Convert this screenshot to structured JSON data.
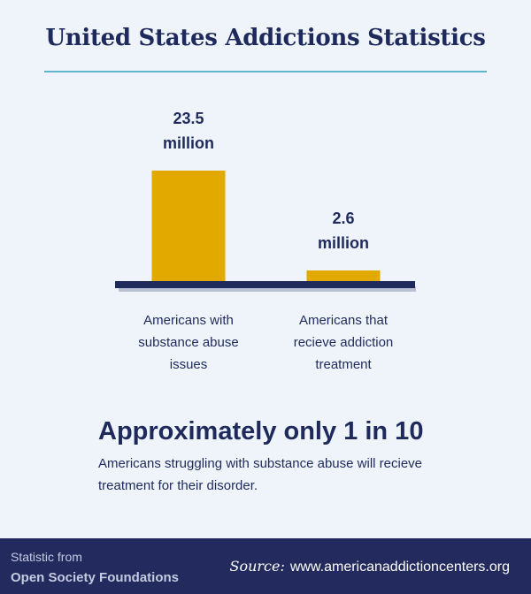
{
  "title": "United States Addictions Statistics",
  "colors": {
    "background": "#eef4fa",
    "navy": "#1f2a5c",
    "bar": "#e2aa00",
    "rule": "#5fb3cc",
    "footer": "#232a5e"
  },
  "chart_data": {
    "type": "bar",
    "categories": [
      [
        "Americans with",
        "substance abuse",
        "issues"
      ],
      [
        "Americans that",
        "recieve addiction",
        "treatment"
      ]
    ],
    "values": [
      23.5,
      2.6
    ],
    "value_labels": [
      [
        "23.5",
        "million"
      ],
      [
        "2.6",
        "million"
      ]
    ],
    "unit": "million",
    "title": "",
    "xlabel": "",
    "ylabel": "",
    "grid": false
  },
  "headline": "Approximately only 1 in 10",
  "body_text": "Americans struggling with substance abuse will recieve treatment for their disorder.",
  "footer": {
    "statistic_from": "Statistic from",
    "organization": "Open Society Foundations",
    "source_label": "Source:",
    "source_url": "www.americanaddictioncenters.org"
  }
}
